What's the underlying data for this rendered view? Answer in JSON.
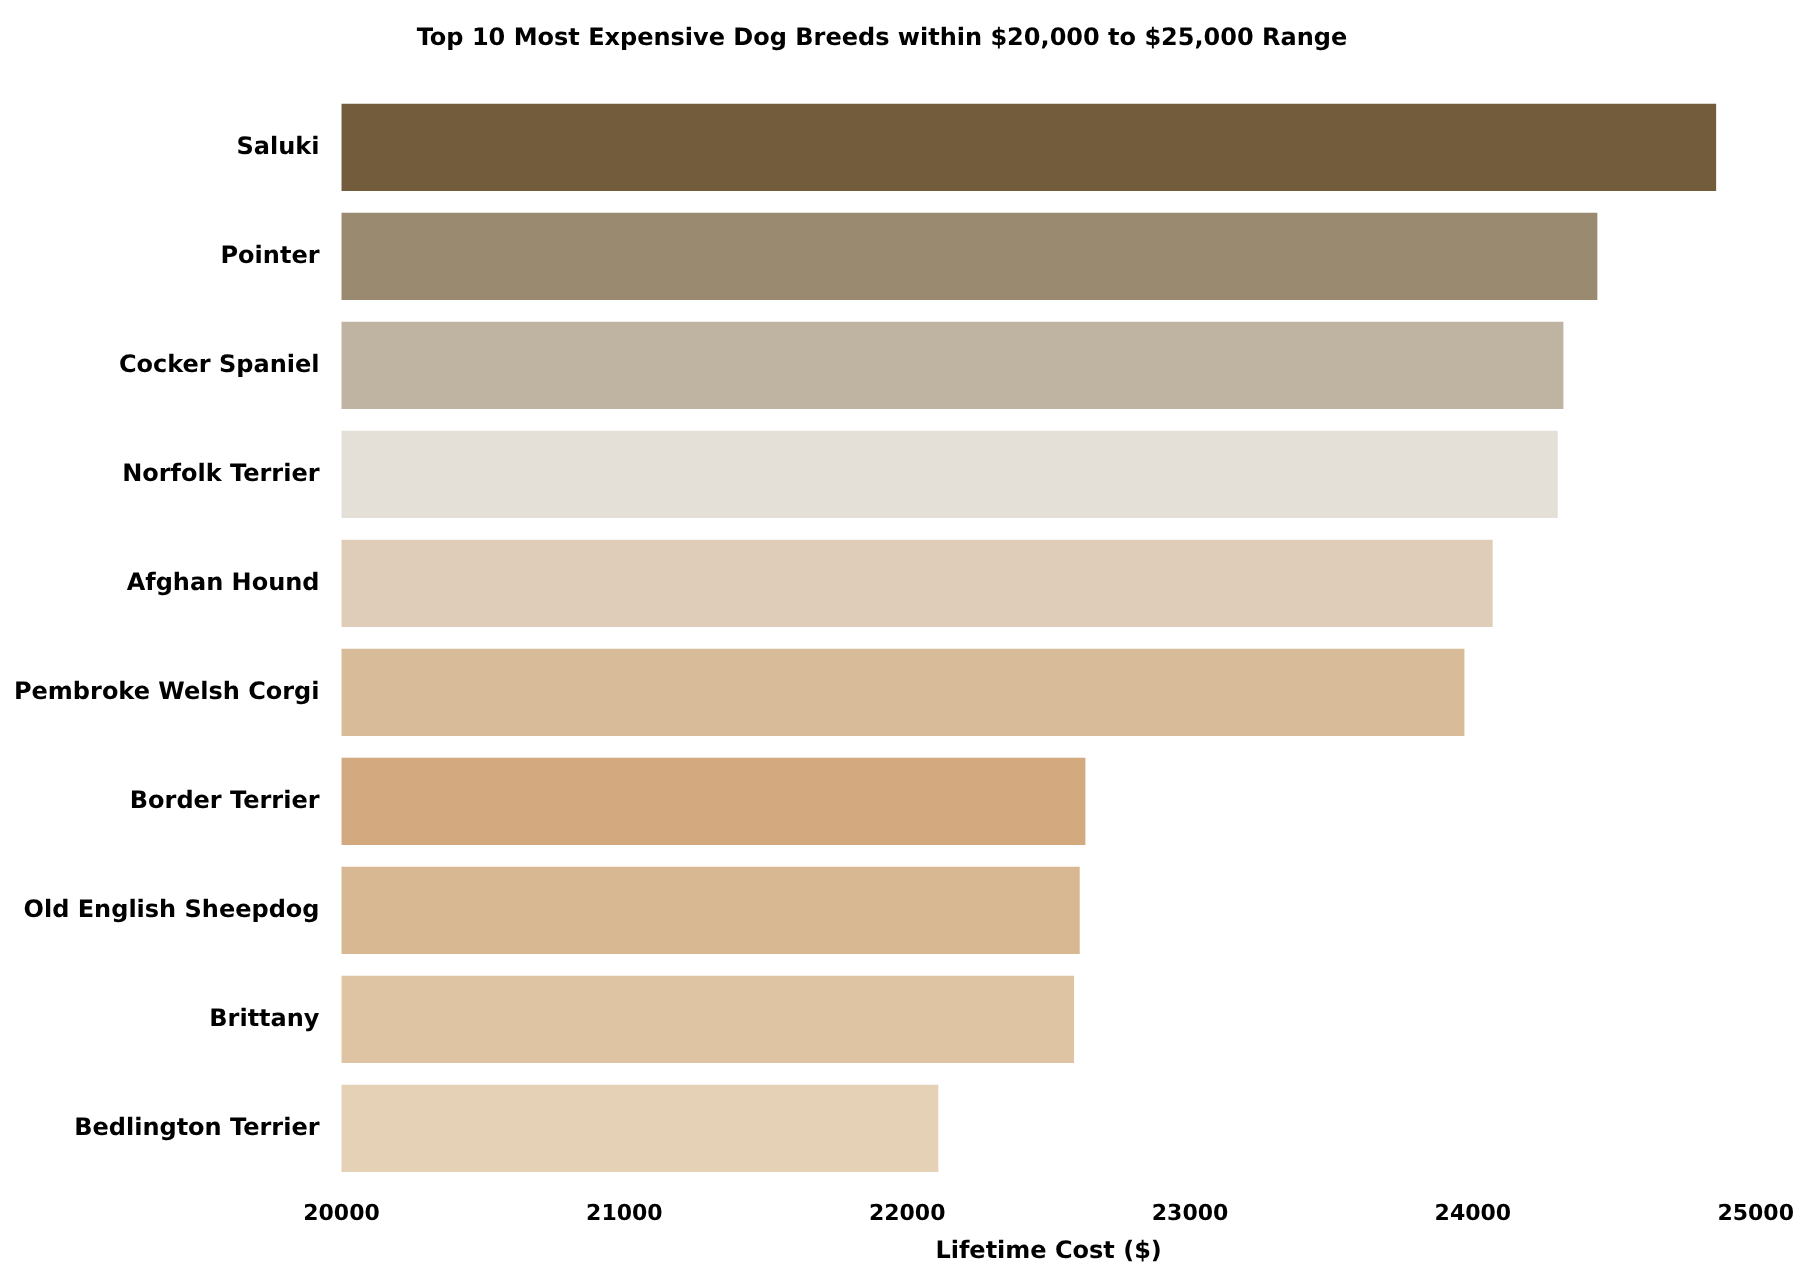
{
  "chart_data": {
    "type": "bar",
    "orientation": "horizontal",
    "title": "Top 10 Most Expensive Dog Breeds within $20,000 to $25,000 Range",
    "xlabel": "Lifetime Cost ($)",
    "categories": [
      "Saluki",
      "Pointer",
      "Cocker Spaniel",
      "Norfolk Terrier",
      "Afghan Hound",
      "Pembroke Welsh Corgi",
      "Border Terrier",
      "Old English Sheepdog",
      "Brittany",
      "Bedlington Terrier"
    ],
    "values": [
      24860,
      24440,
      24320,
      24300,
      24070,
      23970,
      22630,
      22610,
      22590,
      22110
    ],
    "colors": [
      "#735c3b",
      "#9a8a6f",
      "#bfb3a2",
      "#e4e0d8",
      "#e0cdb9",
      "#d8bb98",
      "#d3a97f",
      "#d8b893",
      "#dfc4a3",
      "#e4d1b6"
    ],
    "xlim": [
      20000,
      25000
    ],
    "xticks": [
      20000,
      21000,
      22000,
      23000,
      24000,
      25000
    ],
    "grid": false,
    "legend": false
  }
}
